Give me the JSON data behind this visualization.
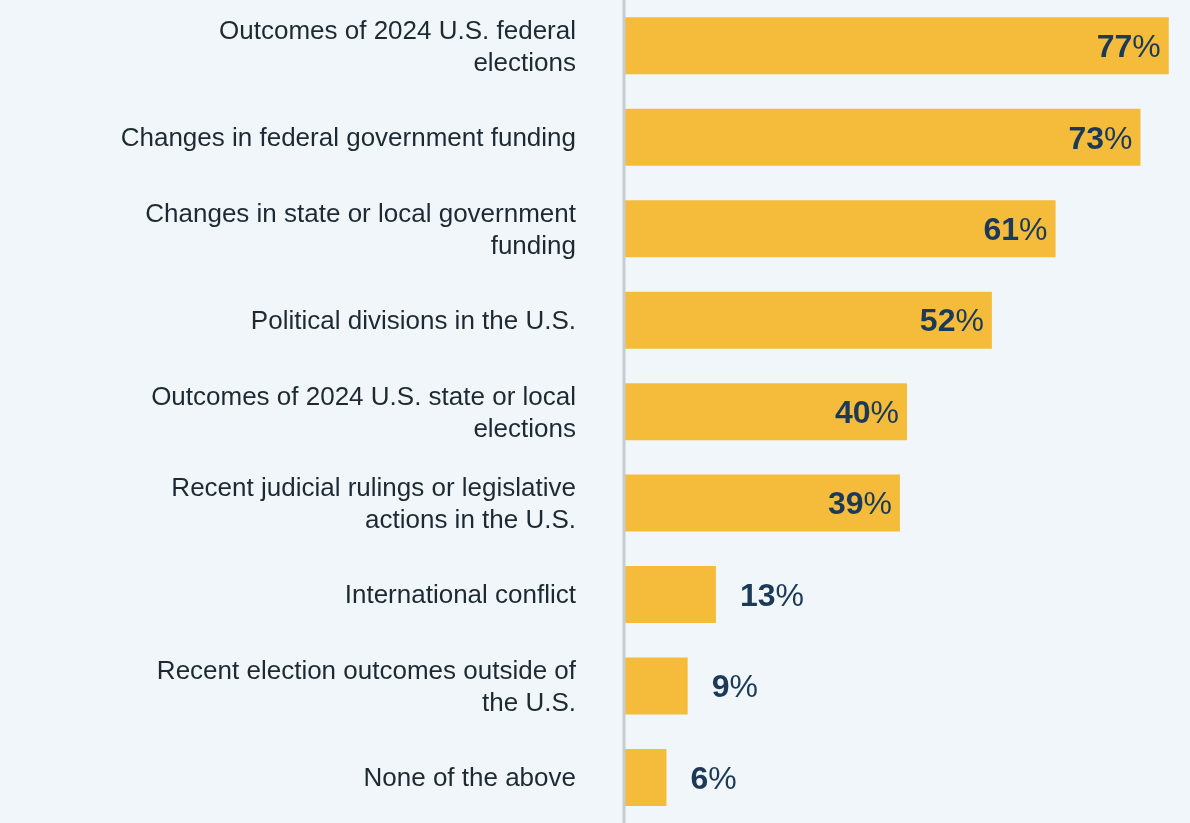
{
  "chart_data": {
    "type": "bar",
    "orientation": "horizontal",
    "categories": [
      "Outcomes of 2024 U.S. federal elections",
      "Changes in federal government funding",
      "Changes in state or local government funding",
      "Political divisions in the U.S.",
      "Outcomes of 2024 U.S. state or local elections",
      "Recent judicial rulings or legislative actions in the U.S.",
      "International conflict",
      "Recent election outcomes outside of the U.S.",
      "None of the above"
    ],
    "values": [
      77,
      73,
      61,
      52,
      40,
      39,
      13,
      9,
      6
    ],
    "value_labels": [
      "77%",
      "73%",
      "61%",
      "52%",
      "40%",
      "39%",
      "13%",
      "9%",
      "6%"
    ],
    "color": "#f5bc3c",
    "xlim": [
      0,
      80
    ],
    "tick_labels": "y"
  }
}
